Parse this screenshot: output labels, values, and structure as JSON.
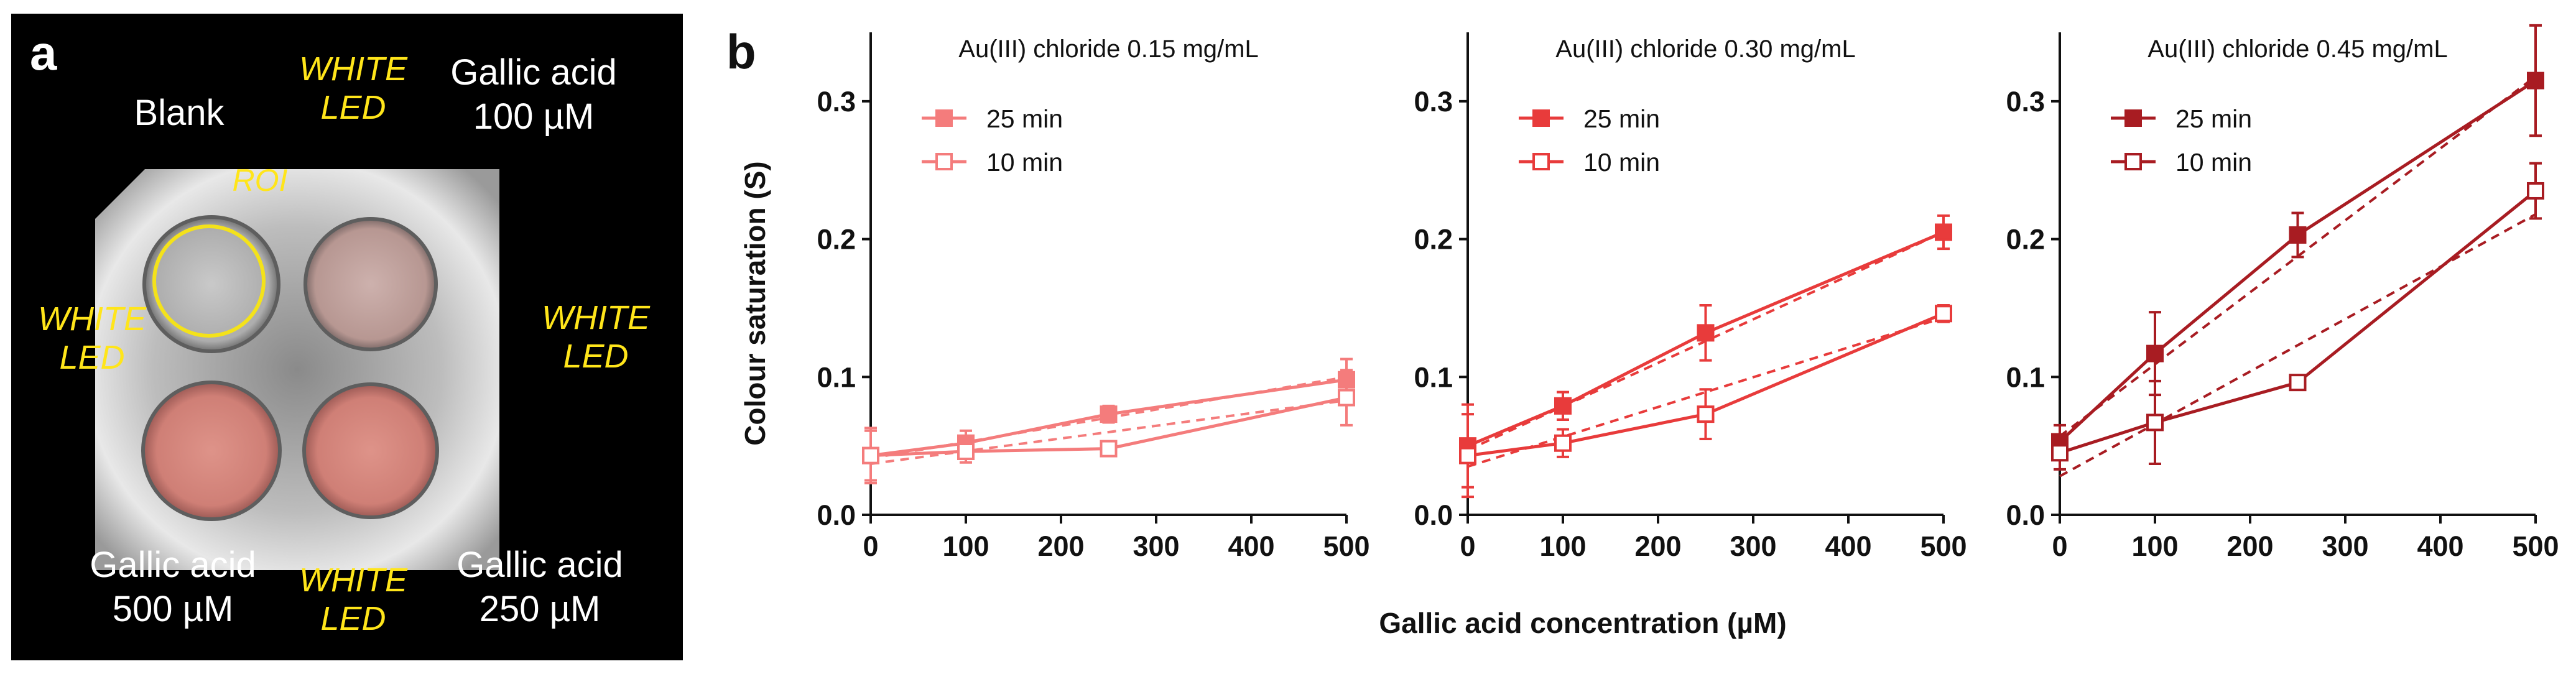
{
  "panel_a": {
    "letter": "a",
    "labels": {
      "blank": "Blank",
      "top_right": "Gallic acid\n100 µM",
      "bottom_left": "Gallic acid\n500 µM",
      "bottom_right": "Gallic acid\n250 µM",
      "roi": "ROI"
    },
    "led": {
      "top": "WHITE\nLED",
      "left": "WHITE\nLED",
      "right": "WHITE\nLED",
      "bottom": "WHITE\nLED"
    },
    "colors": {
      "background": "#000000",
      "led_text": "#ffe51a",
      "roi_circle": "#f4e21a",
      "well_tint": "#d98f86"
    }
  },
  "panel_b": {
    "letter": "b",
    "ylabel": "Colour saturation (S)",
    "xlabel": "Gallic acid concentration (µM)"
  },
  "chart_data": [
    {
      "type": "line",
      "title": "Au(III) chloride 0.15 mg/mL",
      "color": "#f47c7c",
      "x": [
        0,
        100,
        250,
        500
      ],
      "xlim": [
        0,
        500
      ],
      "ylim": [
        0,
        0.35
      ],
      "xticks": [
        "0",
        "100",
        "200",
        "300",
        "400",
        "500"
      ],
      "yticks": [
        "0.0",
        "0.1",
        "0.2",
        "0.3"
      ],
      "legend": "top-left",
      "series": [
        {
          "name": "25 min",
          "marker": "filled-square",
          "values": [
            0.043,
            0.052,
            0.073,
            0.098
          ],
          "errors": [
            0.018,
            0.009,
            0.006,
            0.015
          ],
          "fit": [
            0.041,
            0.1
          ]
        },
        {
          "name": "10 min",
          "marker": "open-square",
          "values": [
            0.043,
            0.046,
            0.048,
            0.085
          ],
          "errors": [
            0.02,
            0.008,
            0.005,
            0.02
          ],
          "fit": [
            0.037,
            0.083
          ]
        }
      ]
    },
    {
      "type": "line",
      "title": "Au(III) chloride 0.30 mg/mL",
      "color": "#e83b3b",
      "x": [
        0,
        100,
        250,
        500
      ],
      "xlim": [
        0,
        500
      ],
      "ylim": [
        0,
        0.35
      ],
      "xticks": [
        "0",
        "100",
        "200",
        "300",
        "400",
        "500"
      ],
      "yticks": [
        "0.0",
        "0.1",
        "0.2",
        "0.3"
      ],
      "legend": "top-left",
      "series": [
        {
          "name": "25 min",
          "marker": "filled-square",
          "values": [
            0.05,
            0.079,
            0.132,
            0.205
          ],
          "errors": [
            0.03,
            0.01,
            0.02,
            0.012
          ],
          "fit": [
            0.047,
            0.205
          ]
        },
        {
          "name": "10 min",
          "marker": "open-square",
          "values": [
            0.043,
            0.052,
            0.073,
            0.146
          ],
          "errors": [
            0.03,
            0.01,
            0.018,
            0.006
          ],
          "fit": [
            0.035,
            0.143
          ]
        }
      ]
    },
    {
      "type": "line",
      "title": "Au(III) chloride 0.45 mg/mL",
      "color": "#a81c22",
      "x": [
        0,
        100,
        250,
        500
      ],
      "xlim": [
        0,
        500
      ],
      "ylim": [
        0,
        0.35
      ],
      "xticks": [
        "0",
        "100",
        "200",
        "300",
        "400",
        "500"
      ],
      "yticks": [
        "0.0",
        "0.1",
        "0.2",
        "0.3"
      ],
      "legend": "top-left",
      "series": [
        {
          "name": "25 min",
          "marker": "filled-square",
          "values": [
            0.053,
            0.117,
            0.203,
            0.315
          ],
          "errors": [
            0.012,
            0.03,
            0.016,
            0.04
          ],
          "fit": [
            0.057,
            0.318
          ]
        },
        {
          "name": "10 min",
          "marker": "open-square",
          "values": [
            0.045,
            0.067,
            0.096,
            0.235
          ],
          "errors": [
            0.012,
            0.03,
            0.005,
            0.02
          ],
          "fit": [
            0.028,
            0.218
          ]
        }
      ]
    }
  ]
}
